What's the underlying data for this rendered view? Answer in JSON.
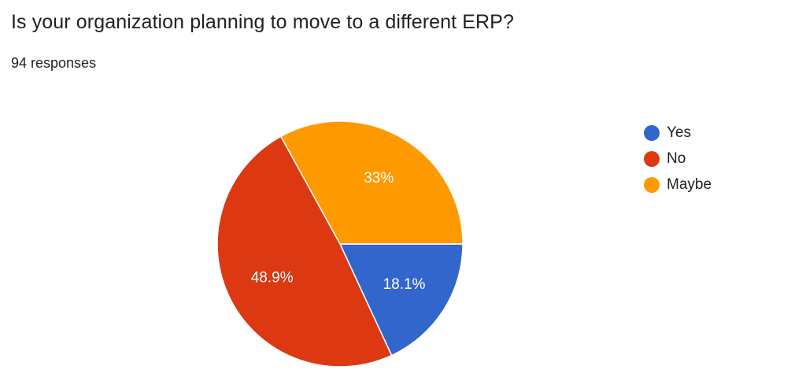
{
  "header": {
    "title": "Is your organization planning to move to a different ERP?",
    "responses": "94 responses"
  },
  "chart_data": {
    "type": "pie",
    "categories": [
      "Yes",
      "No",
      "Maybe"
    ],
    "values": [
      18.1,
      48.9,
      33
    ],
    "labels": [
      "18.1%",
      "48.9%",
      "33%"
    ],
    "colors": [
      "#3366CC",
      "#DC3912",
      "#FF9900"
    ],
    "legend_position": "right",
    "units": "%"
  }
}
